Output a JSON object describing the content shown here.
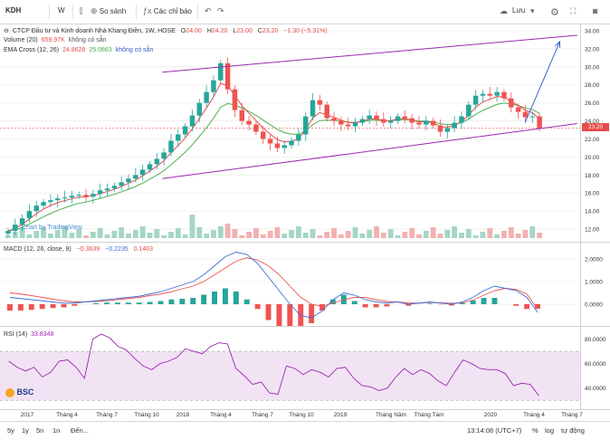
{
  "toolbar": {
    "symbol": "KDH",
    "interval": "W",
    "compare_label": "So sánh",
    "indicators_label": "Các chỉ báo",
    "save_label": "Lưu"
  },
  "chart_data": [
    {
      "type": "candlestick",
      "title": "CTCP Đầu tư và Kinh doanh Nhà Khang Điền, 1W, HOSE",
      "ohlc_header": {
        "o_label": "O",
        "o": "24.00",
        "h_label": "H",
        "h": "24.20",
        "l_label": "L",
        "l": "23.00",
        "c_label": "C",
        "c": "23.20",
        "change": "−1.30 (−5.31%)"
      },
      "volume_legend": {
        "label": "Volume (20)",
        "value": "659.97K",
        "extra": "không có sẵn"
      },
      "ema_legend": {
        "label": "EMA Cross (12, 26)",
        "v1": "24.8628",
        "v2": "25.0863",
        "extra": "không có sẵn"
      },
      "watermark": "Chart by TradingView",
      "ylim": [
        11,
        34.5
      ],
      "y_ticks": [
        "34.00",
        "32.00",
        "30.00",
        "28.00",
        "26.00",
        "24.00",
        "22.00",
        "20.00",
        "18.00",
        "16.00",
        "14.00",
        "12.00"
      ],
      "last_price": "23.20",
      "close_series": [
        11.8,
        12.5,
        13.2,
        14.0,
        14.6,
        15.0,
        15.2,
        15.4,
        15.5,
        15.7,
        15.8,
        15.6,
        15.9,
        16.3,
        16.5,
        16.8,
        17.2,
        17.6,
        18.0,
        18.6,
        19.2,
        19.8,
        20.5,
        21.8,
        22.5,
        23.4,
        24.6,
        26.0,
        27.2,
        28.5,
        30.4,
        27.5,
        25.2,
        24.0,
        23.6,
        22.8,
        22.0,
        21.5,
        21.0,
        21.3,
        21.8,
        22.5,
        24.5,
        26.3,
        25.8,
        24.3,
        24.0,
        23.6,
        23.4,
        23.8,
        24.2,
        24.6,
        24.2,
        23.8,
        24.0,
        24.5,
        24.3,
        23.8,
        23.6,
        24.0,
        23.5,
        22.8,
        23.2,
        23.8,
        24.5,
        25.8,
        26.8,
        27.0,
        26.8,
        27.2,
        26.5,
        25.5,
        25.0,
        24.4,
        24.5,
        23.2
      ],
      "trend_upper": [
        [
          0.28,
          29.4
        ],
        [
          0.995,
          33.5
        ]
      ],
      "trend_lower": [
        [
          0.28,
          17.6
        ],
        [
          0.995,
          23.7
        ]
      ],
      "projection": [
        [
          0.905,
          23.8
        ],
        [
          0.965,
          32.8
        ]
      ]
    },
    {
      "type": "line",
      "title": "MACD (12, 26, close, 9)",
      "legend_values": [
        "−0.3639",
        "−0.2235",
        "0.1403"
      ],
      "y_ticks": [
        "2.0000",
        "1.0000",
        "0.0000"
      ],
      "ylim": [
        -0.8,
        2.4
      ],
      "macd": [
        0.3,
        0.25,
        0.2,
        0.15,
        0.1,
        0.05,
        0.05,
        0.1,
        0.15,
        0.2,
        0.25,
        0.3,
        0.35,
        0.45,
        0.55,
        0.7,
        0.85,
        1.0,
        1.3,
        1.7,
        2.1,
        2.3,
        2.2,
        1.8,
        1.2,
        0.6,
        0.0,
        -0.5,
        -0.6,
        -0.3,
        0.2,
        0.5,
        0.4,
        0.2,
        0.1,
        0.05,
        0.1,
        0.0,
        0.05,
        0.1,
        0.05,
        0.0,
        0.1,
        0.3,
        0.6,
        0.8,
        0.7,
        0.6,
        0.3,
        -0.36
      ],
      "signal": [
        0.5,
        0.45,
        0.38,
        0.3,
        0.22,
        0.15,
        0.1,
        0.1,
        0.12,
        0.15,
        0.2,
        0.25,
        0.3,
        0.38,
        0.45,
        0.55,
        0.68,
        0.8,
        1.0,
        1.3,
        1.6,
        1.9,
        2.05,
        1.95,
        1.7,
        1.3,
        0.8,
        0.3,
        0.0,
        -0.1,
        0.05,
        0.2,
        0.3,
        0.3,
        0.2,
        0.12,
        0.1,
        0.05,
        0.05,
        0.08,
        0.06,
        0.04,
        0.06,
        0.18,
        0.4,
        0.6,
        0.7,
        0.65,
        0.45,
        -0.22
      ]
    },
    {
      "type": "line",
      "title": "RSI (14)",
      "legend_value": "33.8348",
      "y_ticks": [
        "80.0000",
        "60.0000",
        "40.0000"
      ],
      "ylim": [
        25,
        87
      ],
      "band": [
        30,
        70
      ],
      "rsi": [
        62,
        57,
        54,
        57,
        49,
        53,
        62,
        63,
        57,
        48,
        80,
        84,
        81,
        74,
        71,
        64,
        58,
        55,
        60,
        62,
        65,
        72,
        70,
        68,
        74,
        77,
        76,
        56,
        50,
        43,
        45,
        36,
        35,
        58,
        56,
        51,
        55,
        53,
        49,
        56,
        57,
        48,
        42,
        41,
        38,
        40,
        49,
        56,
        51,
        55,
        52,
        46,
        42,
        53,
        63,
        60,
        56,
        55,
        55,
        52,
        42,
        44,
        43,
        33.8
      ]
    }
  ],
  "x_ticks": [
    "2017",
    "Tháng 4",
    "Tháng 7",
    "Tháng 10",
    "2018",
    "Tháng 4",
    "Tháng 7",
    "Tháng 10",
    "2019",
    "Tháng Năm",
    "Tháng Tám",
    "2020",
    "Tháng 4",
    "Tháng 7"
  ],
  "rsi_ticks_extra": [],
  "bottom_bar": {
    "ranges": [
      "5y",
      "1y",
      "5n",
      "1n",
      "Đến..."
    ],
    "time": "13:14:08 (UTC+7)",
    "pct": "%",
    "log": "log",
    "auto": "tự động"
  },
  "colors": {
    "up": "#26a69a",
    "down": "#ef5350",
    "trend": "#9c27b0",
    "projection": "#3a63c8",
    "ema_fast": "#e84b4b",
    "ema_slow": "#4caf50",
    "macd": "#3f6fd6",
    "signal": "#ef5350",
    "rsi": "#9c27b0",
    "rsi_band": "#f1e3f4"
  }
}
